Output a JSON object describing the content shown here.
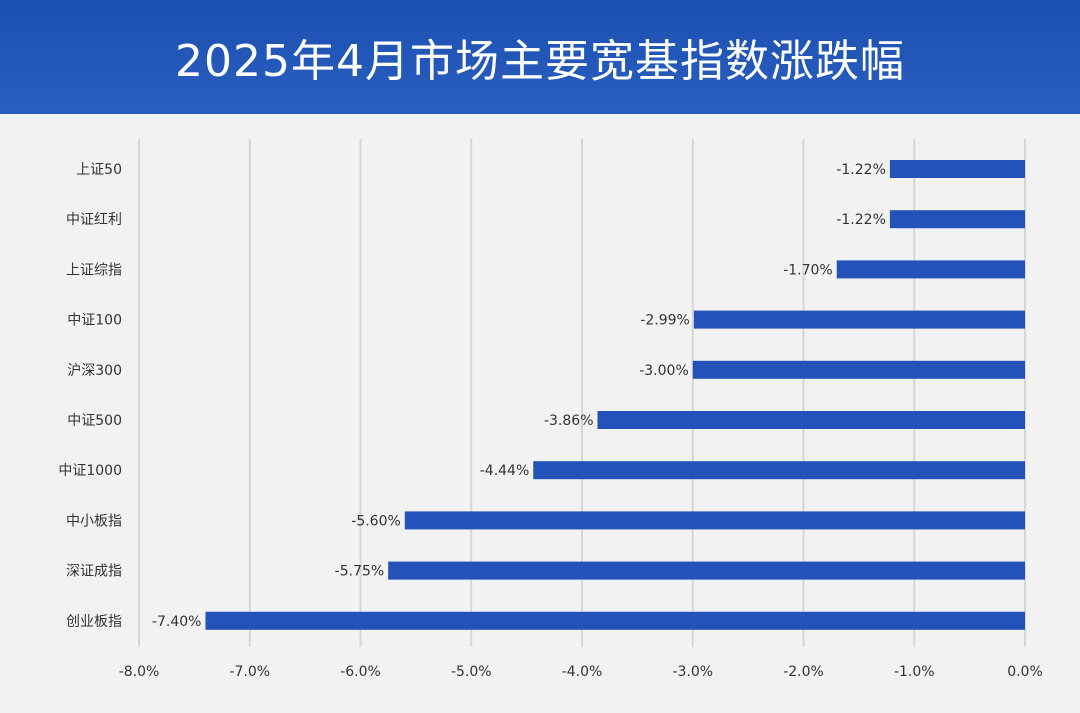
{
  "chart_data": {
    "type": "bar",
    "orientation": "horizontal",
    "title": "2025年4月市场主要宽基指数涨跌幅",
    "categories": [
      "上证50",
      "中证红利",
      "上证综指",
      "中证100",
      "沪深300",
      "中证500",
      "中证1000",
      "中小板指",
      "深证成指",
      "创业板指"
    ],
    "values": [
      -1.22,
      -1.22,
      -1.7,
      -2.99,
      -3.0,
      -3.86,
      -4.44,
      -5.6,
      -5.75,
      -7.4
    ],
    "value_labels": [
      "-1.22%",
      "-1.22%",
      "-1.70%",
      "-2.99%",
      "-3.00%",
      "-3.86%",
      "-4.44%",
      "-5.60%",
      "-5.75%",
      "-7.40%"
    ],
    "xlim": [
      -8.0,
      0.0
    ],
    "xticks": [
      -8.0,
      -7.0,
      -6.0,
      -5.0,
      -4.0,
      -3.0,
      -2.0,
      -1.0,
      0.0
    ],
    "xtick_labels": [
      "-8.0%",
      "-7.0%",
      "-6.0%",
      "-5.0%",
      "-4.0%",
      "-3.0%",
      "-2.0%",
      "-1.0%",
      "0.0%"
    ],
    "grid": true,
    "legend": "none",
    "colors": {
      "bar": "#2352b8",
      "header": "#1f55b5",
      "grid": "#d6d6d6"
    }
  }
}
